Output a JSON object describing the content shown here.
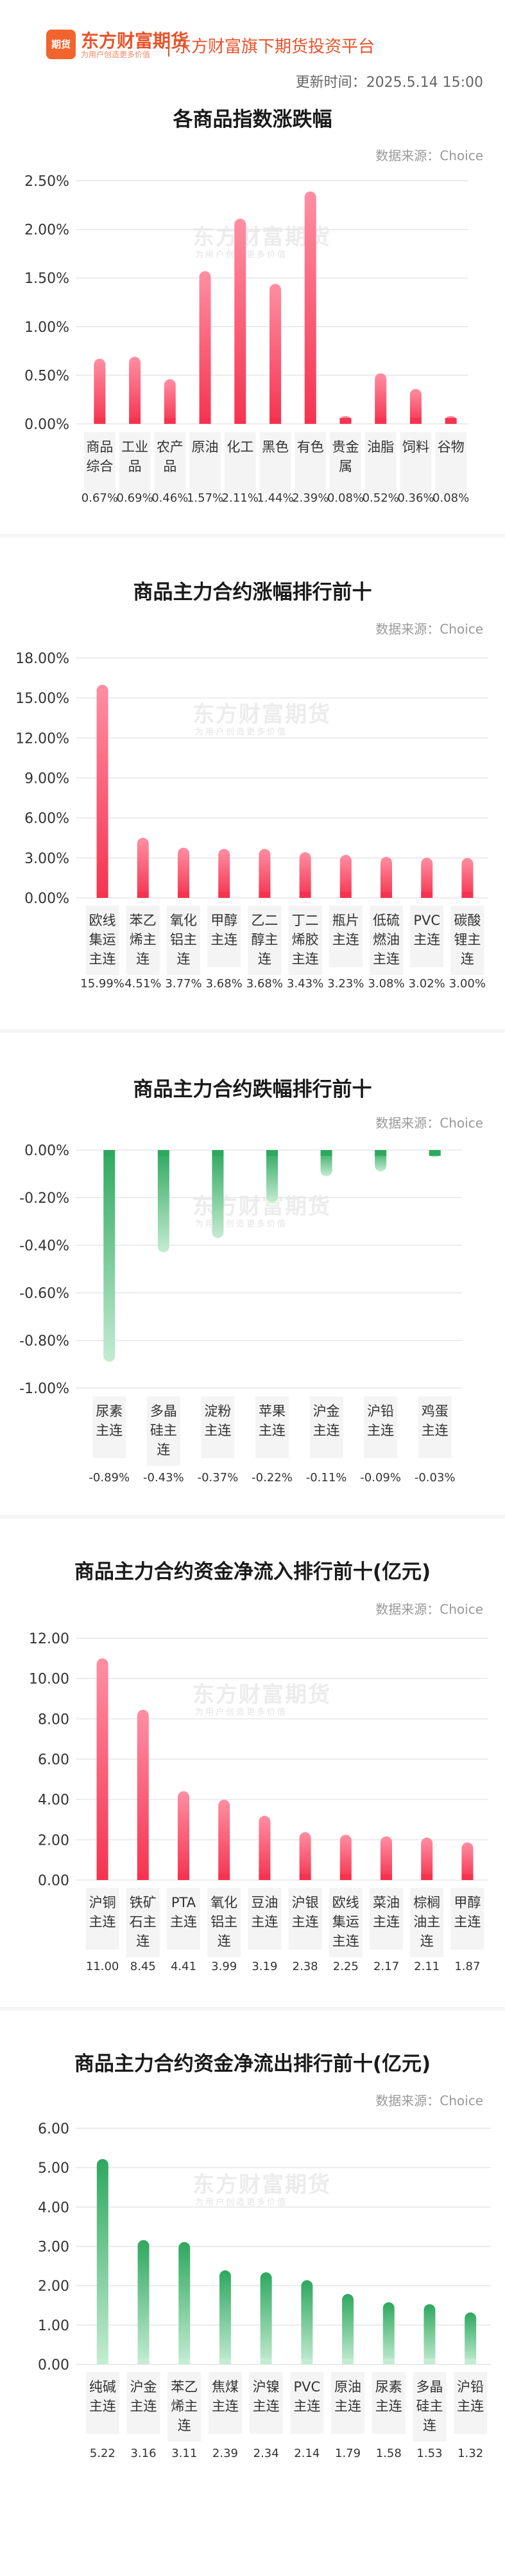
{
  "header": {
    "logo_text": "期货",
    "brand_name": "东方财富期货",
    "brand_slogan": "为用户创造更多价值",
    "platform": "东方财富旗下期货投资平台",
    "update_time": "更新时间：2025.5.14 15:00"
  },
  "source_label": "数据来源：Choice",
  "watermark": "东方财富期货",
  "watermark_sub": "为用户创造更多价值",
  "colors": {
    "red_top": "#ff8fa3",
    "red_bottom": "#f5334f",
    "green_top": "#2ea85f",
    "green_bottom": "#c4ecd2",
    "brand": "#e8532a"
  },
  "chart_data": [
    {
      "type": "bar",
      "title": "各商品指数涨跌幅",
      "categories": [
        "商品综合",
        "工业品",
        "农产品",
        "原油",
        "化工",
        "黑色",
        "有色",
        "贵金属",
        "油脂",
        "饲料",
        "谷物"
      ],
      "values": [
        0.67,
        0.69,
        0.46,
        1.57,
        2.11,
        1.44,
        2.39,
        0.08,
        0.52,
        0.36,
        0.08
      ],
      "value_labels": [
        "0.67%",
        "0.69%",
        "0.46%",
        "1.57%",
        "2.11%",
        "1.44%",
        "2.39%",
        "0.08%",
        "0.52%",
        "0.36%",
        "0.08%"
      ],
      "y_ticks": [
        "0.00%",
        "0.50%",
        "1.00%",
        "1.50%",
        "2.00%",
        "2.50%"
      ],
      "ylim": [
        0,
        2.5
      ],
      "color": "red",
      "grid": true
    },
    {
      "type": "bar",
      "title": "商品主力合约涨幅排行前十",
      "categories": [
        "欧线集运主连",
        "苯乙烯主连",
        "氧化铝主连",
        "甲醇主连",
        "乙二醇主连",
        "丁二烯胶主连",
        "瓶片主连",
        "低硫燃油主连",
        "PVC主连",
        "碳酸锂主连"
      ],
      "values": [
        15.99,
        4.51,
        3.77,
        3.68,
        3.68,
        3.43,
        3.23,
        3.08,
        3.02,
        3.0
      ],
      "value_labels": [
        "15.99%",
        "4.51%",
        "3.77%",
        "3.68%",
        "3.68%",
        "3.43%",
        "3.23%",
        "3.08%",
        "3.02%",
        "3.00%"
      ],
      "y_ticks": [
        "0.00%",
        "3.00%",
        "6.00%",
        "9.00%",
        "12.00%",
        "15.00%",
        "18.00%"
      ],
      "ylim": [
        0,
        18
      ],
      "color": "red",
      "grid": true
    },
    {
      "type": "bar",
      "title": "商品主力合约跌幅排行前十",
      "categories": [
        "尿素主连",
        "多晶硅主连",
        "淀粉主连",
        "苹果主连",
        "沪金主连",
        "沪铅主连",
        "鸡蛋主连"
      ],
      "values": [
        -0.89,
        -0.43,
        -0.37,
        -0.22,
        -0.11,
        -0.09,
        -0.03
      ],
      "value_labels": [
        "-0.89%",
        "-0.43%",
        "-0.37%",
        "-0.22%",
        "-0.11%",
        "-0.09%",
        "-0.03%"
      ],
      "y_ticks": [
        "0.00%",
        "-0.20%",
        "-0.40%",
        "-0.60%",
        "-0.80%",
        "-1.00%"
      ],
      "ylim": [
        -1.0,
        0
      ],
      "color": "green",
      "grid": true
    },
    {
      "type": "bar",
      "title": "商品主力合约资金净流入排行前十(亿元)",
      "categories": [
        "沪铜主连",
        "铁矿石主连",
        "PTA主连",
        "氧化铝主连",
        "豆油主连",
        "沪银主连",
        "欧线集运主连",
        "菜油主连",
        "棕榈油主连",
        "甲醇主连"
      ],
      "values": [
        11.0,
        8.45,
        4.41,
        3.99,
        3.19,
        2.38,
        2.25,
        2.17,
        2.11,
        1.87
      ],
      "value_labels": [
        "11.00",
        "8.45",
        "4.41",
        "3.99",
        "3.19",
        "2.38",
        "2.25",
        "2.17",
        "2.11",
        "1.87"
      ],
      "y_ticks": [
        "0.00",
        "2.00",
        "4.00",
        "6.00",
        "8.00",
        "10.00",
        "12.00"
      ],
      "ylim": [
        0,
        12
      ],
      "color": "red",
      "grid": true
    },
    {
      "type": "bar",
      "title": "商品主力合约资金净流出排行前十(亿元)",
      "categories": [
        "纯碱主连",
        "沪金主连",
        "苯乙烯主连",
        "焦煤主连",
        "沪镍主连",
        "PVC主连",
        "原油主连",
        "尿素主连",
        "多晶硅主连",
        "沪铅主连"
      ],
      "values": [
        5.22,
        3.16,
        3.11,
        2.39,
        2.34,
        2.14,
        1.79,
        1.58,
        1.53,
        1.32
      ],
      "value_labels": [
        "5.22",
        "3.16",
        "3.11",
        "2.39",
        "2.34",
        "2.14",
        "1.79",
        "1.58",
        "1.53",
        "1.32"
      ],
      "y_ticks": [
        "0.00",
        "1.00",
        "2.00",
        "3.00",
        "4.00",
        "5.00",
        "6.00"
      ],
      "ylim": [
        0,
        6
      ],
      "color": "green",
      "grid": true
    }
  ]
}
